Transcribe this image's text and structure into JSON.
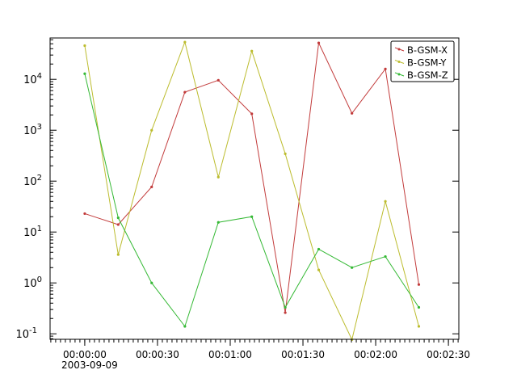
{
  "chart_data": {
    "type": "line",
    "title": "",
    "xlabel": "",
    "ylabel": "",
    "y_scale": "log",
    "ylim": [
      0.078,
      65000
    ],
    "xlim_seconds": [
      -14.3,
      154.3
    ],
    "x_units": "seconds since 2003-09-09 00:00:00",
    "x_tick_labels": [
      "00:00:00",
      "00:00:30",
      "00:01:00",
      "00:01:30",
      "00:02:00",
      "00:02:30"
    ],
    "x_tick_values": [
      0,
      30,
      60,
      90,
      120,
      150
    ],
    "x_date_label": "2003-09-09",
    "y_tick_values": [
      0.1,
      1,
      10,
      100,
      1000,
      10000
    ],
    "y_tick_exponents": [
      "-1",
      "0",
      "1",
      "2",
      "3",
      "4"
    ],
    "grid": false,
    "legend_placement": "top-right",
    "x": [
      0,
      13.8,
      27.6,
      41.3,
      55.1,
      68.9,
      82.7,
      96.5,
      110.2,
      124.0,
      137.8
    ],
    "series": [
      {
        "name": "B-GSM-X",
        "color": "#c23b3b",
        "values": [
          23,
          14,
          77,
          5600,
          9600,
          2100,
          0.26,
          52000,
          2150,
          16000,
          0.93
        ]
      },
      {
        "name": "B-GSM-Y",
        "color": "#bcbc2e",
        "values": [
          46000,
          3.6,
          1000,
          54000,
          120,
          36000,
          345,
          1.8,
          0.077,
          40,
          0.14
        ]
      },
      {
        "name": "B-GSM-Z",
        "color": "#35b935",
        "values": [
          12900,
          19,
          1.0,
          0.14,
          15.5,
          20,
          0.33,
          4.6,
          2.0,
          3.3,
          0.33
        ]
      }
    ]
  }
}
